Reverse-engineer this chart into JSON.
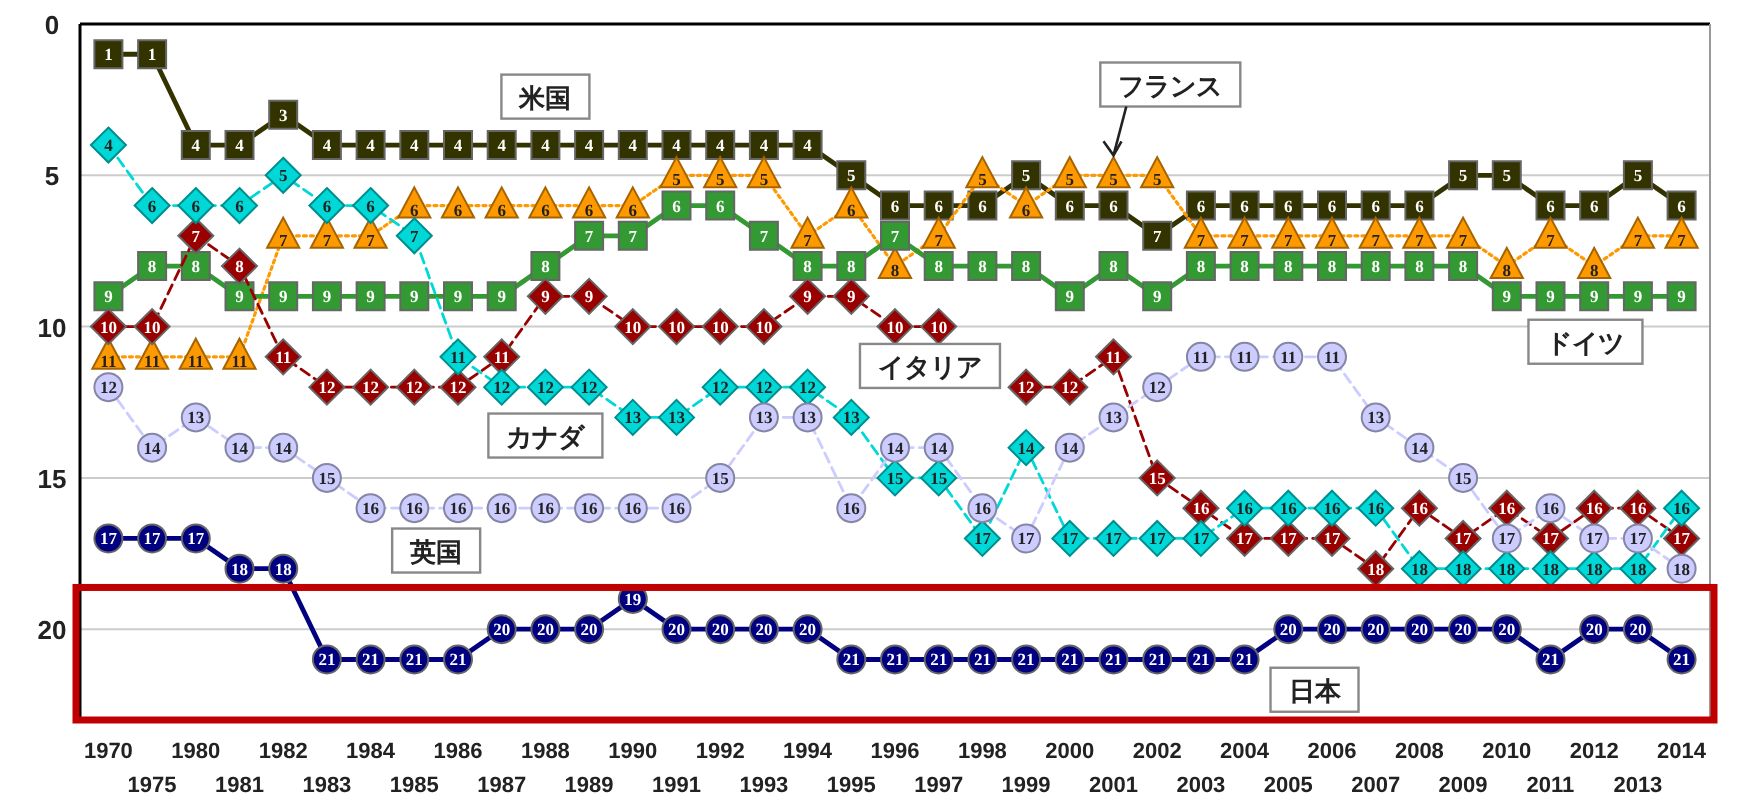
{
  "chart_data": {
    "type": "line",
    "categories": [
      "1970",
      "1975",
      "1980",
      "1981",
      "1982",
      "1983",
      "1984",
      "1985",
      "1986",
      "1987",
      "1988",
      "1989",
      "1990",
      "1991",
      "1992",
      "1993",
      "1994",
      "1995",
      "1996",
      "1997",
      "1998",
      "1999",
      "2000",
      "2001",
      "2002",
      "2003",
      "2004",
      "2005",
      "2006",
      "2007",
      "2008",
      "2009",
      "2010",
      "2011",
      "2012",
      "2013",
      "2014"
    ],
    "ylim": [
      23,
      0
    ],
    "yticks": [
      0,
      5,
      10,
      15,
      20
    ],
    "grid": "y",
    "data_labels": true,
    "series": [
      {
        "name": "米国",
        "color": "#333300",
        "marker": "square",
        "line_style": "solid",
        "values": [
          1,
          1,
          4,
          4,
          3,
          4,
          4,
          4,
          4,
          4,
          4,
          4,
          4,
          4,
          4,
          4,
          4,
          5,
          6,
          6,
          6,
          5,
          6,
          6,
          7,
          6,
          6,
          6,
          6,
          6,
          6,
          5,
          5,
          6,
          6,
          5,
          6
        ]
      },
      {
        "name": "フランス",
        "color": "#ff9900",
        "marker": "triangle",
        "line_style": "dotted",
        "values": [
          11,
          11,
          11,
          11,
          7,
          7,
          7,
          6,
          6,
          6,
          6,
          6,
          6,
          5,
          5,
          5,
          7,
          6,
          8,
          7,
          5,
          6,
          5,
          5,
          5,
          7,
          7,
          7,
          7,
          7,
          7,
          7,
          8,
          7,
          8,
          7,
          7
        ]
      },
      {
        "name": "ドイツ",
        "color": "#339933",
        "marker": "square",
        "line_style": "solid",
        "values": [
          9,
          8,
          8,
          9,
          9,
          9,
          9,
          9,
          9,
          9,
          8,
          7,
          7,
          6,
          6,
          7,
          8,
          8,
          7,
          8,
          8,
          8,
          9,
          8,
          9,
          8,
          8,
          8,
          8,
          8,
          8,
          8,
          9,
          9,
          9,
          9,
          9
        ]
      },
      {
        "name": "イタリア",
        "color": "#990000",
        "marker": "diamond",
        "line_style": "dashed",
        "values": [
          10,
          10,
          7,
          8,
          11,
          12,
          12,
          12,
          12,
          11,
          9,
          9,
          10,
          10,
          10,
          10,
          9,
          9,
          10,
          10,
          null,
          12,
          12,
          11,
          15,
          16,
          17,
          17,
          17,
          18,
          16,
          17,
          16,
          17,
          16,
          16,
          17
        ]
      },
      {
        "name": "カナダ",
        "color": "#00d8d8",
        "marker": "diamond",
        "line_style": "dashed",
        "values": [
          4,
          6,
          6,
          6,
          5,
          6,
          6,
          7,
          11,
          12,
          12,
          12,
          13,
          13,
          12,
          12,
          12,
          13,
          15,
          15,
          17,
          14,
          17,
          17,
          17,
          17,
          16,
          16,
          16,
          16,
          18,
          18,
          18,
          18,
          18,
          18,
          16
        ]
      },
      {
        "name": "英国",
        "color": "#ccccff",
        "marker": "circle",
        "line_style": "dashed",
        "values": [
          12,
          14,
          13,
          14,
          14,
          15,
          16,
          16,
          16,
          16,
          16,
          16,
          16,
          16,
          15,
          13,
          13,
          16,
          14,
          14,
          16,
          17,
          14,
          13,
          12,
          11,
          11,
          11,
          11,
          13,
          14,
          15,
          17,
          16,
          17,
          17,
          18
        ]
      },
      {
        "name": "日本",
        "color": "#000080",
        "marker": "circle",
        "line_style": "solid",
        "values": [
          17,
          17,
          17,
          18,
          18,
          21,
          21,
          21,
          21,
          20,
          20,
          20,
          19,
          20,
          20,
          20,
          20,
          21,
          21,
          21,
          21,
          21,
          21,
          21,
          21,
          21,
          21,
          20,
          20,
          20,
          20,
          20,
          20,
          21,
          20,
          20,
          21
        ]
      }
    ]
  }
}
